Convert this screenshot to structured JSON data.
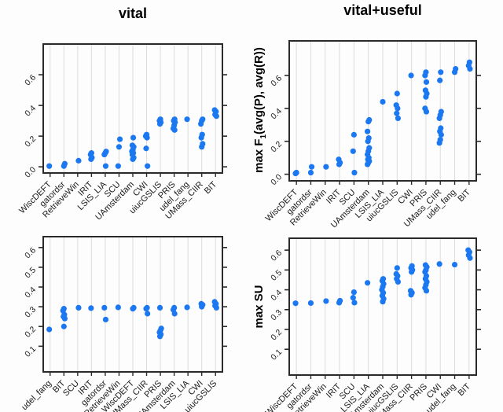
{
  "figure": {
    "description": "2x2 grid of strip plots comparing retrieval systems",
    "column_titles": [
      "vital",
      "vital+useful"
    ]
  },
  "colors": {
    "dot": "#1c78f0",
    "grid": "#dcdcdc",
    "axis": "#2a2a2a",
    "tick_text": "#1a1a1a",
    "background": "#fdfdfd"
  },
  "ylabels": {
    "f1": {
      "pre": "max F",
      "sub": "1",
      "post": "(avg(P), avg(R))"
    },
    "su": "max SU"
  },
  "chart_data": [
    {
      "id": "tl",
      "type": "scatter",
      "title": "vital",
      "ylabel": "max F1(avg(P), avg(R))",
      "grid": true,
      "legend": "none",
      "categories": [
        "WiscDEFT",
        "gatordsr",
        "RetrieveWin",
        "IRIT",
        "LSIS_LIA",
        "SCU",
        "UAmsterdam",
        "CWI",
        "uiucGSLIS",
        "PRIS",
        "udel_fang",
        "UMass_CIIR",
        "BIT"
      ],
      "points": [
        [
          0.005
        ],
        [
          0.005,
          0.02
        ],
        [
          0.04
        ],
        [
          0.05,
          0.06,
          0.08,
          0.09
        ],
        [
          0.005,
          0.08,
          0.09,
          0.1
        ],
        [
          0.005,
          0.13,
          0.18
        ],
        [
          0.05,
          0.06,
          0.08,
          0.09,
          0.1,
          0.11,
          0.13,
          0.14,
          0.19
        ],
        [
          0.005,
          0.12,
          0.19,
          0.2,
          0.21
        ],
        [
          0.28,
          0.29,
          0.3,
          0.31
        ],
        [
          0.24,
          0.25,
          0.27,
          0.29,
          0.3,
          0.31
        ],
        [
          0.31
        ],
        [
          0.13,
          0.15,
          0.19,
          0.21,
          0.28,
          0.3,
          0.31
        ],
        [
          0.33,
          0.34,
          0.36,
          0.37
        ]
      ],
      "yticks": [
        "0.0",
        "0.2",
        "0.4",
        "0.6"
      ],
      "ytick_values": [
        0.0,
        0.2,
        0.4,
        0.6
      ],
      "ylim": [
        -0.04,
        0.8
      ]
    },
    {
      "id": "tr",
      "type": "scatter",
      "title": "vital+useful",
      "ylabel": "max F1(avg(P), avg(R))",
      "grid": true,
      "legend": "none",
      "categories": [
        "WiscDEFT",
        "gatordsr",
        "RetrieveWin",
        "IRIT",
        "SCU",
        "UAmsterdam",
        "LSIS_LIA",
        "uiucGSLIS",
        "CWI",
        "PRIS",
        "UMass_CIIR",
        "udel_fang",
        "BIT"
      ],
      "points": [
        [
          0.005,
          0.01
        ],
        [
          0.01,
          0.045
        ],
        [
          0.045
        ],
        [
          0.06,
          0.07,
          0.09
        ],
        [
          0.01,
          0.14,
          0.24
        ],
        [
          0.06,
          0.07,
          0.08,
          0.09,
          0.1,
          0.12,
          0.14,
          0.16,
          0.2,
          0.22,
          0.26,
          0.32,
          0.33
        ],
        [
          0.44
        ],
        [
          0.34,
          0.37,
          0.4,
          0.42,
          0.49
        ],
        [
          0.6
        ],
        [
          0.38,
          0.4,
          0.47,
          0.49,
          0.51,
          0.56,
          0.6,
          0.62
        ],
        [
          0.19,
          0.21,
          0.24,
          0.26,
          0.28,
          0.34,
          0.36,
          0.38,
          0.57,
          0.62
        ],
        [
          0.62,
          0.64
        ],
        [
          0.64,
          0.66,
          0.68
        ]
      ],
      "yticks": [
        "0.0",
        "0.2",
        "0.4",
        "0.6"
      ],
      "ytick_values": [
        0.0,
        0.2,
        0.4,
        0.6
      ],
      "ylim": [
        -0.04,
        0.81
      ]
    },
    {
      "id": "bl",
      "type": "scatter",
      "title": "",
      "ylabel": "max SU",
      "grid": true,
      "legend": "none",
      "categories": [
        "udel_fang",
        "BIT",
        "SCU",
        "IRIT",
        "gatordsr",
        "RetrieveWin",
        "WiscDEFT",
        "UMass_CIIR",
        "PRIS",
        "UAmsterdam",
        "LSIS_LIA",
        "CWI",
        "uiucGSLIS"
      ],
      "points": [
        [
          0.185
        ],
        [
          0.2,
          0.24,
          0.25,
          0.26,
          0.28,
          0.29
        ],
        [
          0.295
        ],
        [
          0.293
        ],
        [
          0.235,
          0.295
        ],
        [
          0.297
        ],
        [
          0.29,
          0.295
        ],
        [
          0.265,
          0.29,
          0.295
        ],
        [
          0.15,
          0.16,
          0.17,
          0.18,
          0.19,
          0.295
        ],
        [
          0.265,
          0.285,
          0.295
        ],
        [
          0.297
        ],
        [
          0.3,
          0.31,
          0.315
        ],
        [
          0.295,
          0.305,
          0.315,
          0.325
        ]
      ],
      "yticks": [
        "0.1",
        "0.2",
        "0.3",
        "0.4",
        "0.5",
        "0.6"
      ],
      "ytick_values": [
        0.1,
        0.2,
        0.3,
        0.4,
        0.5,
        0.6
      ],
      "ylim": [
        -0.03,
        0.655
      ]
    },
    {
      "id": "br",
      "type": "scatter",
      "title": "",
      "ylabel": "max SU",
      "grid": true,
      "legend": "none",
      "categories": [
        "WiscDEFT",
        "gatordsr",
        "RetrieveWin",
        "IRIT",
        "SCU",
        "LSIS_LIA",
        "UAmsterdam",
        "uiucGSLIS",
        "UMass_CIIR",
        "PRIS",
        "CWI",
        "udel_fang",
        "BIT"
      ],
      "points": [
        [
          0.332
        ],
        [
          0.333
        ],
        [
          0.343
        ],
        [
          0.335,
          0.345
        ],
        [
          0.335,
          0.36,
          0.388
        ],
        [
          0.435
        ],
        [
          0.34,
          0.355,
          0.37,
          0.385,
          0.4,
          0.415,
          0.43,
          0.445,
          0.455
        ],
        [
          0.44,
          0.455,
          0.47,
          0.48,
          0.51
        ],
        [
          0.375,
          0.385,
          0.395,
          0.49,
          0.5,
          0.51,
          0.52
        ],
        [
          0.395,
          0.41,
          0.425,
          0.44,
          0.455,
          0.47,
          0.49,
          0.5,
          0.515,
          0.525
        ],
        [
          0.53
        ],
        [
          0.527
        ],
        [
          0.56,
          0.575,
          0.59,
          0.6
        ]
      ],
      "yticks": [
        "0.1",
        "0.2",
        "0.3",
        "0.4",
        "0.5",
        "0.6"
      ],
      "ytick_values": [
        0.1,
        0.2,
        0.3,
        0.4,
        0.5,
        0.6
      ],
      "ylim": [
        -0.03,
        0.66
      ]
    }
  ]
}
